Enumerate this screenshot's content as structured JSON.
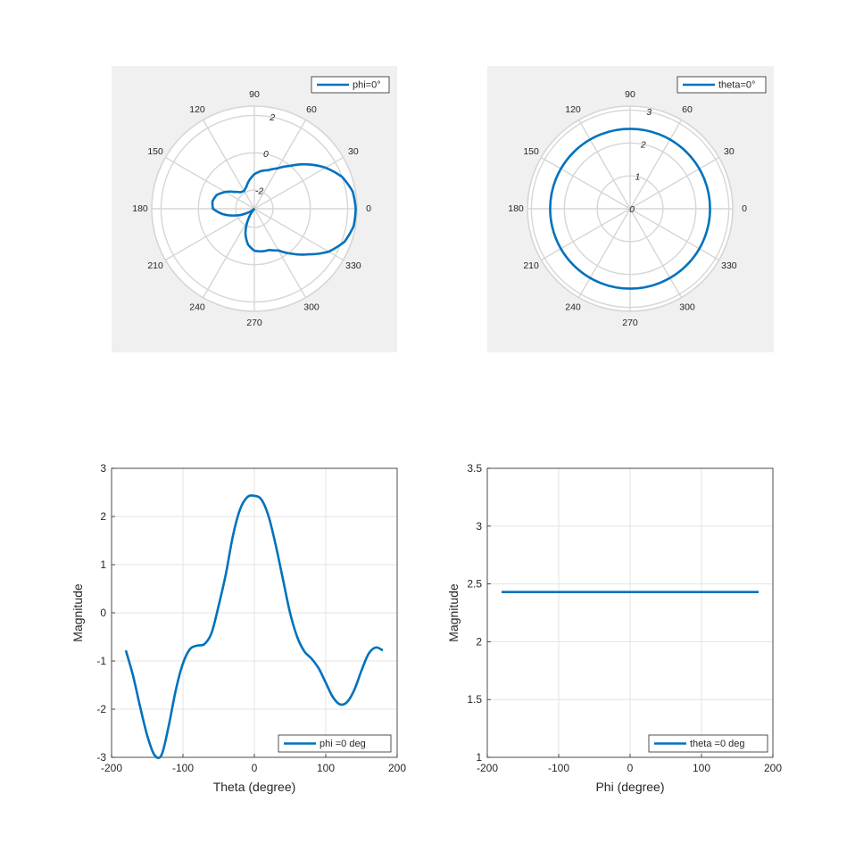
{
  "colors": {
    "line": "#0072BD",
    "polar_background": "#F0F0F0",
    "grid": "#D6D6D6",
    "axis": "#262626"
  },
  "chart_data": [
    {
      "type": "line",
      "coordinate_system": "polar",
      "theta_unit": "degree",
      "theta_ticks": [
        0,
        30,
        60,
        90,
        120,
        150,
        180,
        210,
        240,
        270,
        300,
        330
      ],
      "theta_tick_labels": [
        "0",
        "30",
        "60",
        "90",
        "120",
        "150",
        "180",
        "210",
        "240",
        "270",
        "300",
        "330"
      ],
      "r_limits": [
        -3,
        2.5
      ],
      "r_ticks": [
        -2,
        0,
        2
      ],
      "r_tick_labels": [
        "-2",
        "0",
        "2"
      ],
      "grid": true,
      "legend": {
        "location": "top-right",
        "entries": [
          "phi=0°"
        ]
      },
      "series": [
        {
          "name": "phi=0°",
          "x": [
            -180,
            -170,
            -160,
            -150,
            -140,
            -130,
            -120,
            -110,
            -100,
            -90,
            -80,
            -70,
            -60,
            -50,
            -40,
            -30,
            -20,
            -10,
            0,
            10,
            20,
            30,
            40,
            50,
            60,
            70,
            80,
            90,
            100,
            110,
            120,
            130,
            140,
            150,
            160,
            170,
            180
          ],
          "y": [
            -0.78,
            -1.3,
            -1.95,
            -2.55,
            -2.95,
            -2.95,
            -2.35,
            -1.6,
            -1.05,
            -0.75,
            -0.68,
            -0.65,
            -0.42,
            0.15,
            0.8,
            1.6,
            2.15,
            2.4,
            2.43,
            2.35,
            2.0,
            1.4,
            0.7,
            0.0,
            -0.5,
            -0.8,
            -0.95,
            -1.15,
            -1.45,
            -1.75,
            -1.9,
            -1.85,
            -1.6,
            -1.2,
            -0.85,
            -0.72,
            -0.78
          ]
        }
      ]
    },
    {
      "type": "line",
      "coordinate_system": "polar",
      "theta_unit": "degree",
      "theta_ticks": [
        0,
        30,
        60,
        90,
        120,
        150,
        180,
        210,
        240,
        270,
        300,
        330
      ],
      "theta_tick_labels": [
        "0",
        "30",
        "60",
        "90",
        "120",
        "150",
        "180",
        "210",
        "240",
        "270",
        "300",
        "330"
      ],
      "r_limits": [
        0,
        3.12
      ],
      "r_ticks": [
        0,
        1,
        2,
        3
      ],
      "r_tick_labels": [
        "0",
        "1",
        "2",
        "3"
      ],
      "grid": true,
      "legend": {
        "location": "top-right",
        "entries": [
          "theta=0°"
        ]
      },
      "series": [
        {
          "name": "theta=0°",
          "x": [
            -180,
            180
          ],
          "y": [
            2.43,
            2.43
          ],
          "constant": true
        }
      ]
    },
    {
      "type": "line",
      "xlabel": "Theta (degree)",
      "ylabel": "Magnitude",
      "xlim": [
        -200,
        200
      ],
      "ylim": [
        -3,
        3
      ],
      "xticks": [
        -200,
        -100,
        0,
        100,
        200
      ],
      "xtick_labels": [
        "-200",
        "-100",
        "0",
        "100",
        "200"
      ],
      "yticks": [
        -3,
        -2,
        -1,
        0,
        1,
        2,
        3
      ],
      "ytick_labels": [
        "-3",
        "-2",
        "-1",
        "0",
        "1",
        "2",
        "3"
      ],
      "grid": true,
      "legend": {
        "location": "bottom-right",
        "entries": [
          "phi =0 deg"
        ]
      },
      "series": [
        {
          "name": "phi =0 deg",
          "x": [
            -180,
            -170,
            -160,
            -150,
            -140,
            -130,
            -120,
            -110,
            -100,
            -90,
            -80,
            -70,
            -60,
            -50,
            -40,
            -30,
            -20,
            -10,
            0,
            10,
            20,
            30,
            40,
            50,
            60,
            70,
            80,
            90,
            100,
            110,
            120,
            130,
            140,
            150,
            160,
            170,
            180
          ],
          "y": [
            -0.78,
            -1.3,
            -1.95,
            -2.55,
            -2.95,
            -2.95,
            -2.35,
            -1.6,
            -1.05,
            -0.75,
            -0.68,
            -0.65,
            -0.42,
            0.15,
            0.8,
            1.6,
            2.15,
            2.4,
            2.43,
            2.35,
            2.0,
            1.4,
            0.7,
            0.0,
            -0.5,
            -0.8,
            -0.95,
            -1.15,
            -1.45,
            -1.75,
            -1.9,
            -1.85,
            -1.6,
            -1.2,
            -0.85,
            -0.72,
            -0.78
          ]
        }
      ]
    },
    {
      "type": "line",
      "xlabel": "Phi (degree)",
      "ylabel": "Magnitude",
      "xlim": [
        -200,
        200
      ],
      "ylim": [
        1,
        3.5
      ],
      "xticks": [
        -200,
        -100,
        0,
        100,
        200
      ],
      "xtick_labels": [
        "-200",
        "-100",
        "0",
        "100",
        "200"
      ],
      "yticks": [
        1,
        1.5,
        2,
        2.5,
        3,
        3.5
      ],
      "ytick_labels": [
        "1",
        "1.5",
        "2",
        "2.5",
        "3",
        "3.5"
      ],
      "grid": true,
      "legend": {
        "location": "bottom-right",
        "entries": [
          "theta =0 deg"
        ]
      },
      "series": [
        {
          "name": "theta =0 deg",
          "x": [
            -180,
            180
          ],
          "y": [
            2.43,
            2.43
          ]
        }
      ]
    }
  ]
}
